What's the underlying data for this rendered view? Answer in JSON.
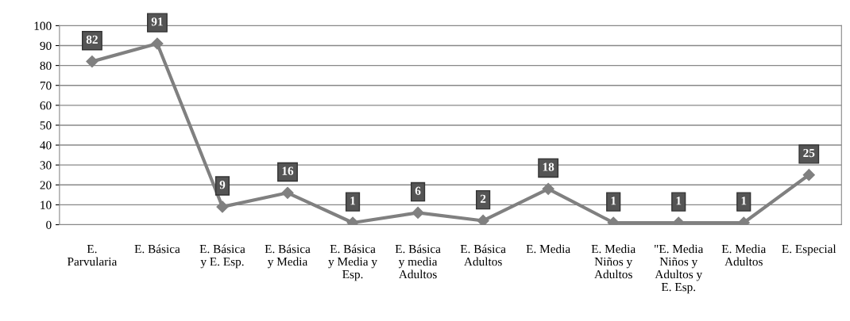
{
  "chart_data": {
    "type": "line",
    "categories": [
      "E.\nParvularia",
      "E. Básica",
      "E. Básica\ny E. Esp.",
      "E. Básica\ny Media",
      "E. Básica\ny Media y\nEsp.",
      "E. Básica\ny media\nAdultos",
      "E. Básica\nAdultos",
      "E. Media",
      "E. Media\nNiños y\nAdultos",
      "\"E. Media\nNiños y\nAdultos y\nE. Esp.",
      "E. Media\nAdultos",
      "E. Especial"
    ],
    "series": [
      {
        "color": "#808080",
        "values": [
          82,
          91,
          9,
          16,
          1,
          6,
          2,
          18,
          1,
          1,
          1,
          25
        ]
      }
    ],
    "ylim": [
      0,
      100
    ],
    "yticks": [
      0,
      10,
      20,
      30,
      40,
      50,
      60,
      70,
      80,
      90,
      100
    ],
    "grid": "y",
    "marker": "diamond",
    "line_style": "solid",
    "data_labels": true
  }
}
